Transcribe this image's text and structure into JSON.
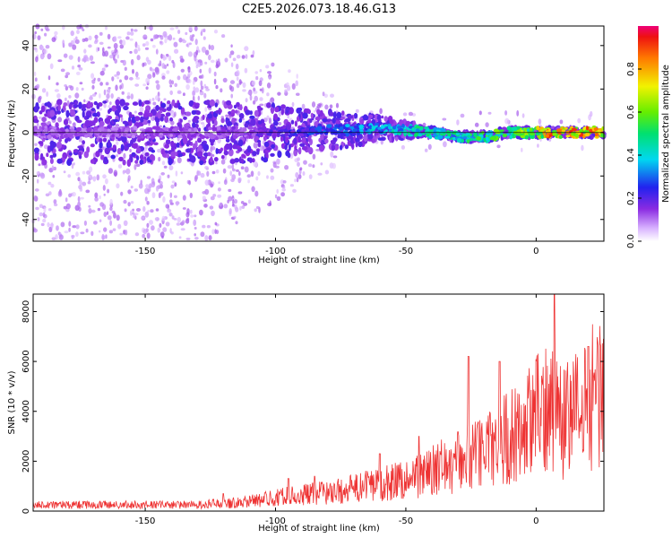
{
  "title": "C2E5.2026.073.18.46.G13",
  "chart_data": [
    {
      "type": "heatmap",
      "name": "spectrogram",
      "xlabel": "Height of straight line (km)",
      "ylabel": "Frequency (Hz)",
      "xlim": [
        -193,
        26
      ],
      "ylim": [
        -50,
        49
      ],
      "xticks": [
        -150,
        -100,
        -50,
        0
      ],
      "xtick_labels": [
        "-150",
        "-100",
        "-50",
        "0"
      ],
      "yticks": [
        -40,
        -20,
        0,
        20,
        40
      ],
      "ytick_labels": [
        "-40",
        "-20",
        "0",
        "20",
        "40"
      ],
      "ridge": {
        "description": "dominant frequency track (Hz) vs height (km)",
        "x": [
          -193,
          -150,
          -110,
          -85,
          -70,
          -60,
          -50,
          -40,
          -30,
          -25,
          -20,
          -15,
          -10,
          -5,
          0,
          5,
          10,
          15,
          26
        ],
        "y": [
          0,
          0,
          0,
          1,
          1,
          2,
          1,
          0,
          -2,
          -2,
          -2,
          -1,
          0,
          0,
          0,
          0,
          0,
          0,
          0
        ],
        "peak_norm_amplitude": [
          0.15,
          0.15,
          0.18,
          0.3,
          0.4,
          0.45,
          0.5,
          0.55,
          0.5,
          0.55,
          0.6,
          0.65,
          0.6,
          0.7,
          0.8,
          0.95,
          0.9,
          0.95,
          0.95
        ]
      },
      "colorbar": {
        "label": "Normalized spectral amplitude",
        "range": [
          0,
          1
        ],
        "ticks": [
          0,
          0.2,
          0.4,
          0.6,
          0.8
        ],
        "tick_labels": [
          "0.0",
          "0.2",
          "0.4",
          "0.6",
          "0.8"
        ]
      }
    },
    {
      "type": "line",
      "name": "snr",
      "xlabel": "Height of straight line (km)",
      "ylabel": "SNR (10 * v/v)",
      "xlim": [
        -193,
        26
      ],
      "ylim": [
        0,
        8700
      ],
      "xticks": [
        -150,
        -100,
        -50,
        0
      ],
      "xtick_labels": [
        "-150",
        "-100",
        "-50",
        "0"
      ],
      "yticks": [
        0,
        2000,
        4000,
        6000,
        8000
      ],
      "ytick_labels": [
        "0",
        "2000",
        "4000",
        "6000",
        "8000"
      ],
      "series": [
        {
          "name": "SNR",
          "color": "#ee3333",
          "x": [
            -193,
            -180,
            -170,
            -160,
            -150,
            -140,
            -130,
            -125,
            -120,
            -115,
            -110,
            -105,
            -100,
            -95,
            -90,
            -85,
            -80,
            -75,
            -70,
            -65,
            -60,
            -55,
            -50,
            -45,
            -40,
            -35,
            -30,
            -25,
            -20,
            -15,
            -10,
            -5,
            0,
            5,
            8,
            10,
            15,
            20,
            26
          ],
          "y": [
            250,
            250,
            250,
            250,
            250,
            250,
            250,
            280,
            300,
            350,
            400,
            450,
            550,
            600,
            650,
            700,
            750,
            800,
            900,
            1000,
            1100,
            1200,
            1300,
            1450,
            1600,
            1800,
            2000,
            2200,
            2400,
            2700,
            3000,
            3300,
            3800,
            4200,
            4500,
            3500,
            4000,
            4500,
            5000
          ],
          "peaks": [
            {
              "x": -120,
              "y": 700
            },
            {
              "x": -95,
              "y": 1300
            },
            {
              "x": -85,
              "y": 1400
            },
            {
              "x": -60,
              "y": 2300
            },
            {
              "x": -45,
              "y": 3000
            },
            {
              "x": -26,
              "y": 6200
            },
            {
              "x": -14,
              "y": 6000
            },
            {
              "x": 7,
              "y": 8700
            },
            {
              "x": 20,
              "y": 6600
            }
          ]
        }
      ]
    }
  ]
}
